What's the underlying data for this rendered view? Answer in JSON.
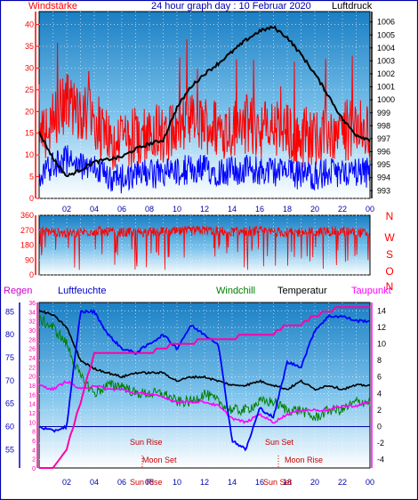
{
  "title": "24 hour graph day : 10 Februar 2020",
  "panel1": {
    "left_label": "Windstärke",
    "right_label": "Luftdruck",
    "wind_ticks": [
      "0",
      "5",
      "10",
      "15",
      "20",
      "25",
      "30",
      "35",
      "40"
    ],
    "pressure_ticks": [
      "993",
      "994",
      "995",
      "996",
      "997",
      "998",
      "999",
      "1000",
      "1001",
      "1002",
      "1003",
      "1004",
      "1005",
      "1006"
    ],
    "x_ticks": [
      "02",
      "04",
      "06",
      "08",
      "10",
      "12",
      "14",
      "16",
      "18",
      "20",
      "22",
      "00"
    ]
  },
  "panel2": {
    "dir_ticks": [
      "0",
      "90",
      "180",
      "270",
      "360"
    ],
    "compass": [
      "N",
      "W",
      "S",
      "O",
      "N"
    ]
  },
  "panel3": {
    "labels": {
      "regen": "Regen",
      "luftfeuchte": "Luftfeuchte",
      "windchill": "Windchill",
      "temperatur": "Temperatur",
      "taupunkt": "Taupunkt"
    },
    "regen_ticks": [
      "0",
      "2",
      "4",
      "6",
      "8",
      "10",
      "12",
      "14",
      "16",
      "18",
      "20",
      "22",
      "24",
      "26",
      "28",
      "30",
      "32",
      "34",
      "36"
    ],
    "humidity_ticks": [
      "55",
      "60",
      "65",
      "70",
      "75",
      "80",
      "85"
    ],
    "temp_ticks": [
      "-4",
      "-2",
      "0",
      "2",
      "4",
      "6",
      "8",
      "10",
      "12",
      "14"
    ],
    "x_ticks": [
      "02",
      "04",
      "06",
      "08",
      "10",
      "12",
      "14",
      "16",
      "18",
      "20",
      "22",
      "00"
    ],
    "annotations": {
      "sun_rise": "Sun Rise",
      "moon_set": "Moon Set",
      "sun_set": "Sun Set",
      "moon_rise": "Moon Rise",
      "sun_rise_x": "Sun Rise",
      "sun_set_x": "Sun Set"
    }
  },
  "colors": {
    "frame": "#0000aa",
    "wind_gust": "#ff0000",
    "wind_avg": "#0000ff",
    "pressure": "#000000",
    "winddir": "#ff0000",
    "humidity": "#0000ff",
    "windchill": "#008000",
    "temperature": "#000000",
    "dewpoint": "#ff00ff",
    "rain": "#ff00aa",
    "annotation": "#cc0000"
  },
  "chart_data": [
    {
      "type": "line",
      "title": "24 hour graph day : 10 Februar 2020",
      "x_hours": [
        0,
        1,
        2,
        3,
        4,
        5,
        6,
        7,
        8,
        9,
        10,
        11,
        12,
        13,
        14,
        15,
        16,
        17,
        18,
        19,
        20,
        21,
        22,
        23,
        24
      ],
      "series": [
        {
          "name": "Windstärke",
          "axis": "left",
          "values": [
            12,
            16,
            20,
            17,
            16,
            11,
            10,
            12,
            12,
            13,
            14,
            15,
            15,
            14,
            14,
            15,
            14,
            14,
            13,
            12,
            12,
            13,
            13,
            14,
            13
          ]
        },
        {
          "name": "Luftdruck",
          "axis": "right",
          "values": [
            997.5,
            995.5,
            994.1,
            994.6,
            995.2,
            995.4,
            995.6,
            996.2,
            996.6,
            996.9,
            999.4,
            1001.0,
            1002.0,
            1002.8,
            1003.7,
            1004.6,
            1005.3,
            1005.6,
            1004.8,
            1003.5,
            1002.0,
            1000.3,
            998.5,
            997.3,
            996.9
          ]
        }
      ],
      "ylim_left": [
        0,
        43
      ],
      "ylim_right": [
        992.4,
        1006.8
      ],
      "grid": true
    },
    {
      "type": "scatter",
      "ylabel": "",
      "x_hours": [
        0,
        2,
        4,
        6,
        8,
        10,
        12,
        14,
        16,
        18,
        20,
        22,
        24
      ],
      "values": [
        270,
        250,
        265,
        255,
        260,
        260,
        270,
        260,
        265,
        255,
        260,
        265,
        250
      ],
      "ylim": [
        0,
        360
      ]
    },
    {
      "type": "line",
      "x_hours": [
        0,
        1,
        2,
        3,
        4,
        5,
        6,
        7,
        8,
        9,
        10,
        11,
        12,
        13,
        14,
        15,
        16,
        17,
        18,
        19,
        20,
        21,
        22,
        23,
        24
      ],
      "series": [
        {
          "name": "Luftfeuchte",
          "axis": "humidity",
          "values": [
            60,
            59,
            60,
            85,
            85,
            80,
            77,
            76,
            78,
            80,
            77,
            82,
            80,
            78,
            57,
            55,
            64,
            62,
            74,
            73,
            81,
            84,
            84,
            83,
            83
          ]
        },
        {
          "name": "Windchill",
          "axis": "temp",
          "values": [
            13,
            12,
            10,
            6,
            4,
            5,
            5,
            4,
            4,
            4,
            3,
            3,
            4,
            3,
            2,
            2,
            3,
            3,
            2,
            2,
            1,
            2,
            2,
            3,
            3
          ]
        },
        {
          "name": "Temperatur",
          "axis": "temp",
          "values": [
            14,
            13.5,
            12,
            8,
            7,
            6.5,
            6,
            6.5,
            6.5,
            6.5,
            5.5,
            6,
            6,
            5.5,
            5,
            5,
            5.5,
            5,
            4.5,
            5.5,
            4.5,
            5,
            4.5,
            5,
            5
          ]
        },
        {
          "name": "Taupunkt",
          "axis": "temp",
          "values": [
            5,
            4.5,
            5.5,
            4.5,
            5,
            4.5,
            4.5,
            4,
            4,
            3.5,
            3,
            3,
            3,
            2.5,
            1,
            0.5,
            1.5,
            0.5,
            1.5,
            2,
            2,
            2,
            2.5,
            2.5,
            3
          ]
        },
        {
          "name": "Regen",
          "axis": "regen",
          "values": [
            0,
            0,
            4,
            14,
            25,
            25,
            25,
            25,
            25,
            26,
            27,
            27,
            28,
            28,
            28,
            29,
            29,
            29,
            31,
            31,
            33,
            34,
            35,
            35,
            35
          ]
        }
      ],
      "ylim_regen": [
        0,
        36
      ],
      "ylim_humidity": [
        51,
        87
      ],
      "ylim_temp": [
        -5,
        15
      ],
      "grid": true
    }
  ]
}
